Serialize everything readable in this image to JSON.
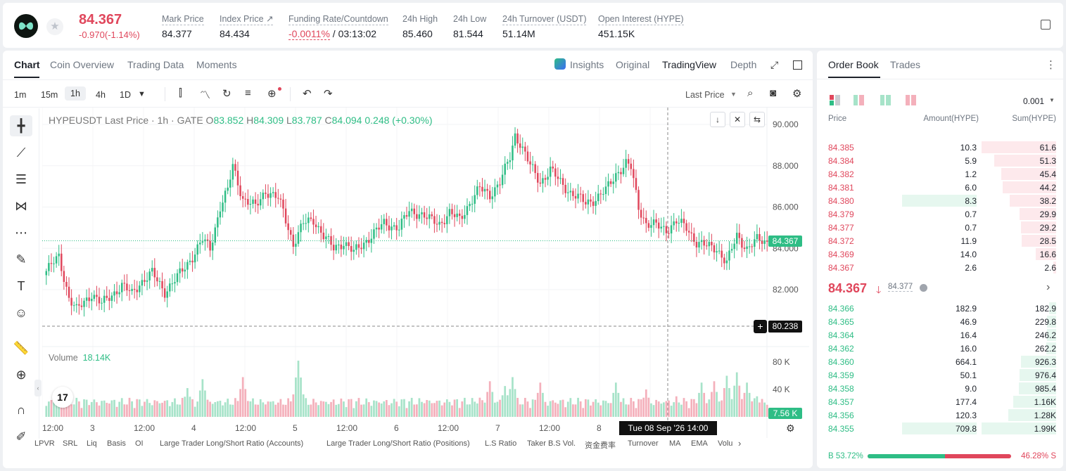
{
  "header": {
    "price": "84.367",
    "change": "-0.970(-1.14%)",
    "mark_price_label": "Mark Price",
    "mark_price": "84.377",
    "index_price_label": "Index Price ↗",
    "index_price": "84.434",
    "funding_label": "Funding Rate/Countdown",
    "funding_rate": "-0.0011%",
    "countdown": "/ 03:13:02",
    "high_label": "24h High",
    "high": "85.460",
    "low_label": "24h Low",
    "low": "81.544",
    "turnover_label": "24h Turnover (USDT)",
    "turnover": "51.14M",
    "oi_label": "Open Interest (HYPE)",
    "oi": "451.15K"
  },
  "tabs": [
    "Chart",
    "Coin Overview",
    "Trading Data",
    "Moments"
  ],
  "right_tabs": [
    "Insights",
    "Original",
    "TradingView",
    "Depth"
  ],
  "timeframes": [
    "1m",
    "15m",
    "1h",
    "4h",
    "1D"
  ],
  "price_source": "Last Price",
  "legend": {
    "symbol": "HYPEUSDT Last Price · 1h · GATE",
    "o_label": "O",
    "o": "83.852",
    "h_label": "H",
    "h": "84.309",
    "l_label": "L",
    "l": "83.787",
    "c_label": "C",
    "c": "84.094",
    "chg": "0.248 (+0.30%)"
  },
  "volume": {
    "label": "Volume",
    "value": "18.14K",
    "badge": "7.56 K"
  },
  "current_price_tag": "84.367",
  "crosshair_price": "80.238",
  "crosshair_time": "Tue 08 Sep '26    14:00",
  "bottom_indicators": [
    "LPVR",
    "SRL",
    "Liq",
    "Basis",
    "OI",
    "Large Trader Long/Short Ratio (Accounts)",
    "Large Trader Long/Short Ratio (Positions)",
    "L.S Ratio",
    "Taker B.S Vol.",
    "资金费率",
    "Turnover",
    "MA",
    "EMA",
    "Volu"
  ],
  "chart_data": {
    "type": "candlestick",
    "y_ticks": [
      "90.000",
      "88.000",
      "86.000",
      "84.000",
      "82.000"
    ],
    "ylim": [
      80.238,
      90.5
    ],
    "vol_ticks": [
      "80 K",
      "40 K"
    ],
    "x_ticks": [
      "12:00",
      "3",
      "12:00",
      "4",
      "12:00",
      "5",
      "12:00",
      "6",
      "12:00",
      "7",
      "12:00",
      "8",
      "12:0"
    ],
    "anchors": [
      [
        0,
        82.9
      ],
      [
        5,
        83.6
      ],
      [
        9,
        81.6
      ],
      [
        12,
        81.0
      ],
      [
        18,
        81.8
      ],
      [
        22,
        81.3
      ],
      [
        30,
        82.2
      ],
      [
        34,
        81.8
      ],
      [
        37,
        82.3
      ],
      [
        42,
        82.8
      ],
      [
        47,
        81.9
      ],
      [
        52,
        82.6
      ],
      [
        58,
        83.6
      ],
      [
        62,
        84.4
      ],
      [
        65,
        84.0
      ],
      [
        69,
        86.0
      ],
      [
        72,
        86.8
      ],
      [
        74,
        88.0
      ],
      [
        78,
        86.4
      ],
      [
        83,
        86.0
      ],
      [
        87,
        86.8
      ],
      [
        92,
        86.4
      ],
      [
        94,
        85.8
      ],
      [
        98,
        84.2
      ],
      [
        102,
        85.2
      ],
      [
        106,
        85.4
      ],
      [
        110,
        84.6
      ],
      [
        114,
        84.0
      ],
      [
        118,
        84.3
      ],
      [
        122,
        83.8
      ],
      [
        128,
        84.5
      ],
      [
        134,
        85.2
      ],
      [
        140,
        85.0
      ],
      [
        144,
        85.8
      ],
      [
        148,
        85.7
      ],
      [
        152,
        85.4
      ],
      [
        156,
        85.2
      ],
      [
        160,
        85.7
      ],
      [
        164,
        85.4
      ],
      [
        168,
        86.2
      ],
      [
        172,
        86.9
      ],
      [
        176,
        86.6
      ],
      [
        180,
        87.2
      ],
      [
        184,
        88.4
      ],
      [
        186,
        89.5
      ],
      [
        188,
        89.1
      ],
      [
        192,
        88.0
      ],
      [
        196,
        87.2
      ],
      [
        200,
        87.8
      ],
      [
        204,
        87.2
      ],
      [
        208,
        86.7
      ],
      [
        214,
        86.2
      ],
      [
        218,
        86.4
      ],
      [
        222,
        86.8
      ],
      [
        226,
        87.6
      ],
      [
        230,
        88.1
      ],
      [
        232,
        87.9
      ],
      [
        235,
        86.0
      ],
      [
        238,
        85.2
      ],
      [
        242,
        85.1
      ],
      [
        246,
        84.9
      ],
      [
        250,
        85.3
      ],
      [
        254,
        85.0
      ],
      [
        258,
        84.3
      ],
      [
        262,
        84.1
      ],
      [
        266,
        84.0
      ],
      [
        270,
        83.3
      ],
      [
        274,
        84.6
      ],
      [
        278,
        84.0
      ],
      [
        282,
        84.4
      ],
      [
        286,
        84.3
      ]
    ],
    "volume_peaks": [
      [
        12,
        20
      ],
      [
        40,
        26
      ],
      [
        56,
        42
      ],
      [
        62,
        55
      ],
      [
        78,
        58
      ],
      [
        100,
        82
      ],
      [
        150,
        20
      ],
      [
        172,
        28
      ],
      [
        176,
        52
      ],
      [
        182,
        45
      ],
      [
        185,
        58
      ],
      [
        196,
        50
      ],
      [
        226,
        50
      ],
      [
        238,
        40
      ],
      [
        250,
        30
      ],
      [
        260,
        50
      ],
      [
        265,
        52
      ],
      [
        270,
        60
      ],
      [
        274,
        65
      ],
      [
        278,
        50
      ],
      [
        282,
        30
      ]
    ]
  },
  "orderbook": {
    "tabs": [
      "Order Book",
      "Trades"
    ],
    "precision": "0.001",
    "cols": [
      "Price",
      "Amount(HYPE)",
      "Sum(HYPE)"
    ],
    "asks": [
      {
        "p": "84.385",
        "a": "10.3",
        "s": "61.6",
        "pct": 1.0,
        "ap": 0
      },
      {
        "p": "84.384",
        "a": "5.9",
        "s": "51.3",
        "pct": 0.83,
        "ap": 0
      },
      {
        "p": "84.382",
        "a": "1.2",
        "s": "45.4",
        "pct": 0.74,
        "ap": 0
      },
      {
        "p": "84.381",
        "a": "6.0",
        "s": "44.2",
        "pct": 0.72,
        "ap": 0
      },
      {
        "p": "84.380",
        "a": "8.3",
        "s": "38.2",
        "pct": 0.62,
        "ap": 0.57
      },
      {
        "p": "84.379",
        "a": "0.7",
        "s": "29.9",
        "pct": 0.49,
        "ap": 0
      },
      {
        "p": "84.377",
        "a": "0.7",
        "s": "29.2",
        "pct": 0.47,
        "ap": 0
      },
      {
        "p": "84.372",
        "a": "11.9",
        "s": "28.5",
        "pct": 0.46,
        "ap": 0
      },
      {
        "p": "84.369",
        "a": "14.0",
        "s": "16.6",
        "pct": 0.27,
        "ap": 0
      },
      {
        "p": "84.367",
        "a": "2.6",
        "s": "2.6",
        "pct": 0.04,
        "ap": 0
      }
    ],
    "mid_price": "84.367",
    "mid_mark": "84.377",
    "bids": [
      {
        "p": "84.366",
        "a": "182.9",
        "s": "182.9",
        "pct": 0.09,
        "ap": 0
      },
      {
        "p": "84.365",
        "a": "46.9",
        "s": "229.8",
        "pct": 0.12,
        "ap": 0
      },
      {
        "p": "84.364",
        "a": "16.4",
        "s": "246.2",
        "pct": 0.12,
        "ap": 0
      },
      {
        "p": "84.362",
        "a": "16.0",
        "s": "262.2",
        "pct": 0.13,
        "ap": 0
      },
      {
        "p": "84.360",
        "a": "664.1",
        "s": "926.3",
        "pct": 0.47,
        "ap": 0
      },
      {
        "p": "84.359",
        "a": "50.1",
        "s": "976.4",
        "pct": 0.49,
        "ap": 0
      },
      {
        "p": "84.358",
        "a": "9.0",
        "s": "985.4",
        "pct": 0.5,
        "ap": 0
      },
      {
        "p": "84.357",
        "a": "177.4",
        "s": "1.16K",
        "pct": 0.58,
        "ap": 0
      },
      {
        "p": "84.356",
        "a": "120.3",
        "s": "1.28K",
        "pct": 0.64,
        "ap": 0
      },
      {
        "p": "84.355",
        "a": "709.8",
        "s": "1.99K",
        "pct": 1.0,
        "ap": 1
      }
    ],
    "buy_ratio": "B 53.72%",
    "sell_ratio": "46.28% S",
    "buy_pct": 53.72
  },
  "colors": {
    "up": "#2ebd85",
    "down": "#e0475c",
    "up_vol": "#a7e3c9",
    "down_vol": "#f4b0bb"
  }
}
